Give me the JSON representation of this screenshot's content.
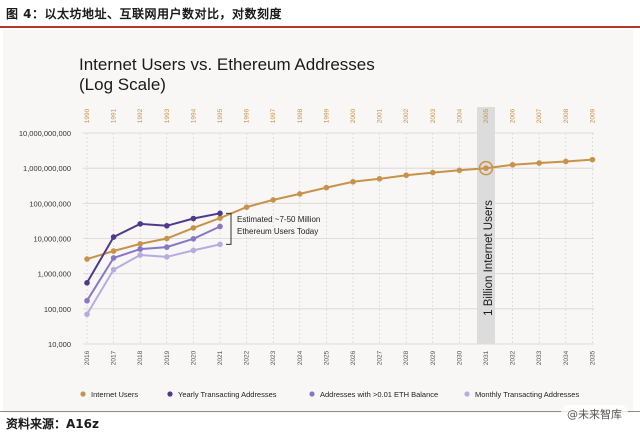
{
  "caption": "图 4：以太坊地址、互联网用户数对比，对数刻度",
  "source": "资料来源：A16z",
  "watermark": "@未来智库",
  "chart_data": {
    "type": "line",
    "title": "Internet Users vs. Ethereum Addresses",
    "subtitle": "(Log Scale)",
    "y_scale": "log",
    "ylim": [
      10000,
      10000000000
    ],
    "grid": true,
    "legend_position": "bottom",
    "y_tick_labels": [
      "10,000,000,000",
      "1,000,000,000",
      "100,000,000",
      "10,000,000",
      "1,000,000",
      "100,000",
      "10,000"
    ],
    "y_tick_values": [
      10000000000,
      1000000000,
      100000000,
      10000000,
      1000000,
      100000,
      10000
    ],
    "x_bottom_labels": [
      "2016",
      "2017",
      "2018",
      "2019",
      "2020",
      "2021",
      "2022",
      "2023",
      "2024",
      "2025",
      "2026",
      "2027",
      "2028",
      "2029",
      "2030",
      "2031",
      "2032",
      "2033",
      "2034",
      "2035"
    ],
    "x_top_labels": [
      "1990",
      "1991",
      "1992",
      "1993",
      "1994",
      "1995",
      "1996",
      "1997",
      "1998",
      "1999",
      "2000",
      "2001",
      "2002",
      "2003",
      "2004",
      "2005",
      "2006",
      "2007",
      "2008",
      "2009"
    ],
    "highlight_index": 15,
    "highlight_label": "1 Billion Internet Users",
    "annotation_text": [
      "Estimated ~7-50 Million",
      "Ethereum Users Today"
    ],
    "series": [
      {
        "name": "Internet Users",
        "color": "#c8924a",
        "values": [
          2600000,
          4400000,
          7000000,
          10000000,
          20000000,
          38000000,
          78000000,
          125000000,
          185000000,
          280000000,
          410000000,
          500000000,
          630000000,
          750000000,
          870000000,
          1000000000,
          1250000000,
          1400000000,
          1550000000,
          1750000000
        ]
      },
      {
        "name": "Yearly Transacting Addresses",
        "color": "#4d3a8c",
        "values": [
          550000,
          11000000,
          26000000,
          23000000,
          37000000,
          52000000
        ]
      },
      {
        "name": "Addresses with >0.01 ETH Balance",
        "color": "#8777c6",
        "values": [
          170000,
          2800000,
          5000000,
          5700000,
          9800000,
          22000000
        ]
      },
      {
        "name": "Monthly Transacting Addresses",
        "color": "#b7acdf",
        "values": [
          70000,
          1300000,
          3400000,
          3000000,
          4600000,
          6800000
        ]
      }
    ]
  }
}
